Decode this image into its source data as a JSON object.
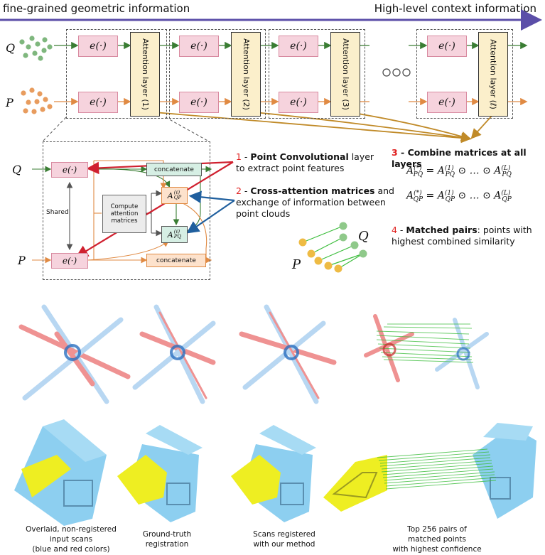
{
  "header": {
    "left_label": "fine-grained geometric information",
    "right_label": "High-level context information"
  },
  "pipeline": {
    "q_label": "Q",
    "p_label": "P",
    "encoder_label": "e(·)",
    "layers": [
      "Attention layer (1)",
      "Attention layer (2)",
      "Attention layer (3)",
      "Attention layer (ℓ)"
    ]
  },
  "detail": {
    "q_label": "Q",
    "p_label": "P",
    "encoder_label": "e(·)",
    "shared_label": "Shared",
    "compute_label": "Compute attention matrices",
    "concat_label": "concatenate",
    "aqp_label": "A",
    "aqp_sub": "QP",
    "apq_label": "A",
    "apq_sub": "PQ",
    "aexp": "(ℓ)"
  },
  "notes": {
    "n1_num": "1",
    "n1_bold": "Point Convolutional",
    "n1_rest": " layer",
    "n1_line2": "to extract point features",
    "n2_num": "2",
    "n2_bold": "Cross-attention matrices",
    "n2_rest": " and",
    "n2_line2": "exchange of information between",
    "n2_line3": "point clouds",
    "n3_num": "3",
    "n3_bold": "Combine matrices at all layers",
    "n4_num": "4",
    "n4_bold": "Matched pairs",
    "n4_rest": ": points with",
    "n4_line2": "highest combined similarity",
    "match_p": "P",
    "match_q": "Q"
  },
  "equations": {
    "eq1_lhs": "PQ",
    "eq1_rhs": "PQ",
    "eq2_lhs": "QP",
    "eq2_rhs": "QP"
  },
  "captions": [
    {
      "l1": "Overlaid, non-registered",
      "l2": "input scans",
      "l3": "(blue and red colors)"
    },
    {
      "l1": "Ground-truth",
      "l2": "registration",
      "l3": ""
    },
    {
      "l1": "Scans registered",
      "l2": "with our method",
      "l3": ""
    },
    {
      "l1": "Top 256 pairs of",
      "l2": "matched points",
      "l3": "with highest confidence"
    }
  ],
  "colors": {
    "q_points": "#7fb77e",
    "p_points": "#e89c5e",
    "encoder_fill": "#f6d3dd",
    "attention_fill": "#fbefcb",
    "arrow_red": "#d0202f",
    "arrow_blue": "#1f5f9e",
    "arrow_gold": "#c08a28",
    "header_arrow": "#5b4ea8",
    "scan_blue": "#7fb8e8",
    "scan_red": "#e23a3a",
    "match_green": "#3bbd3b",
    "scan_yellow": "#eeee22"
  }
}
